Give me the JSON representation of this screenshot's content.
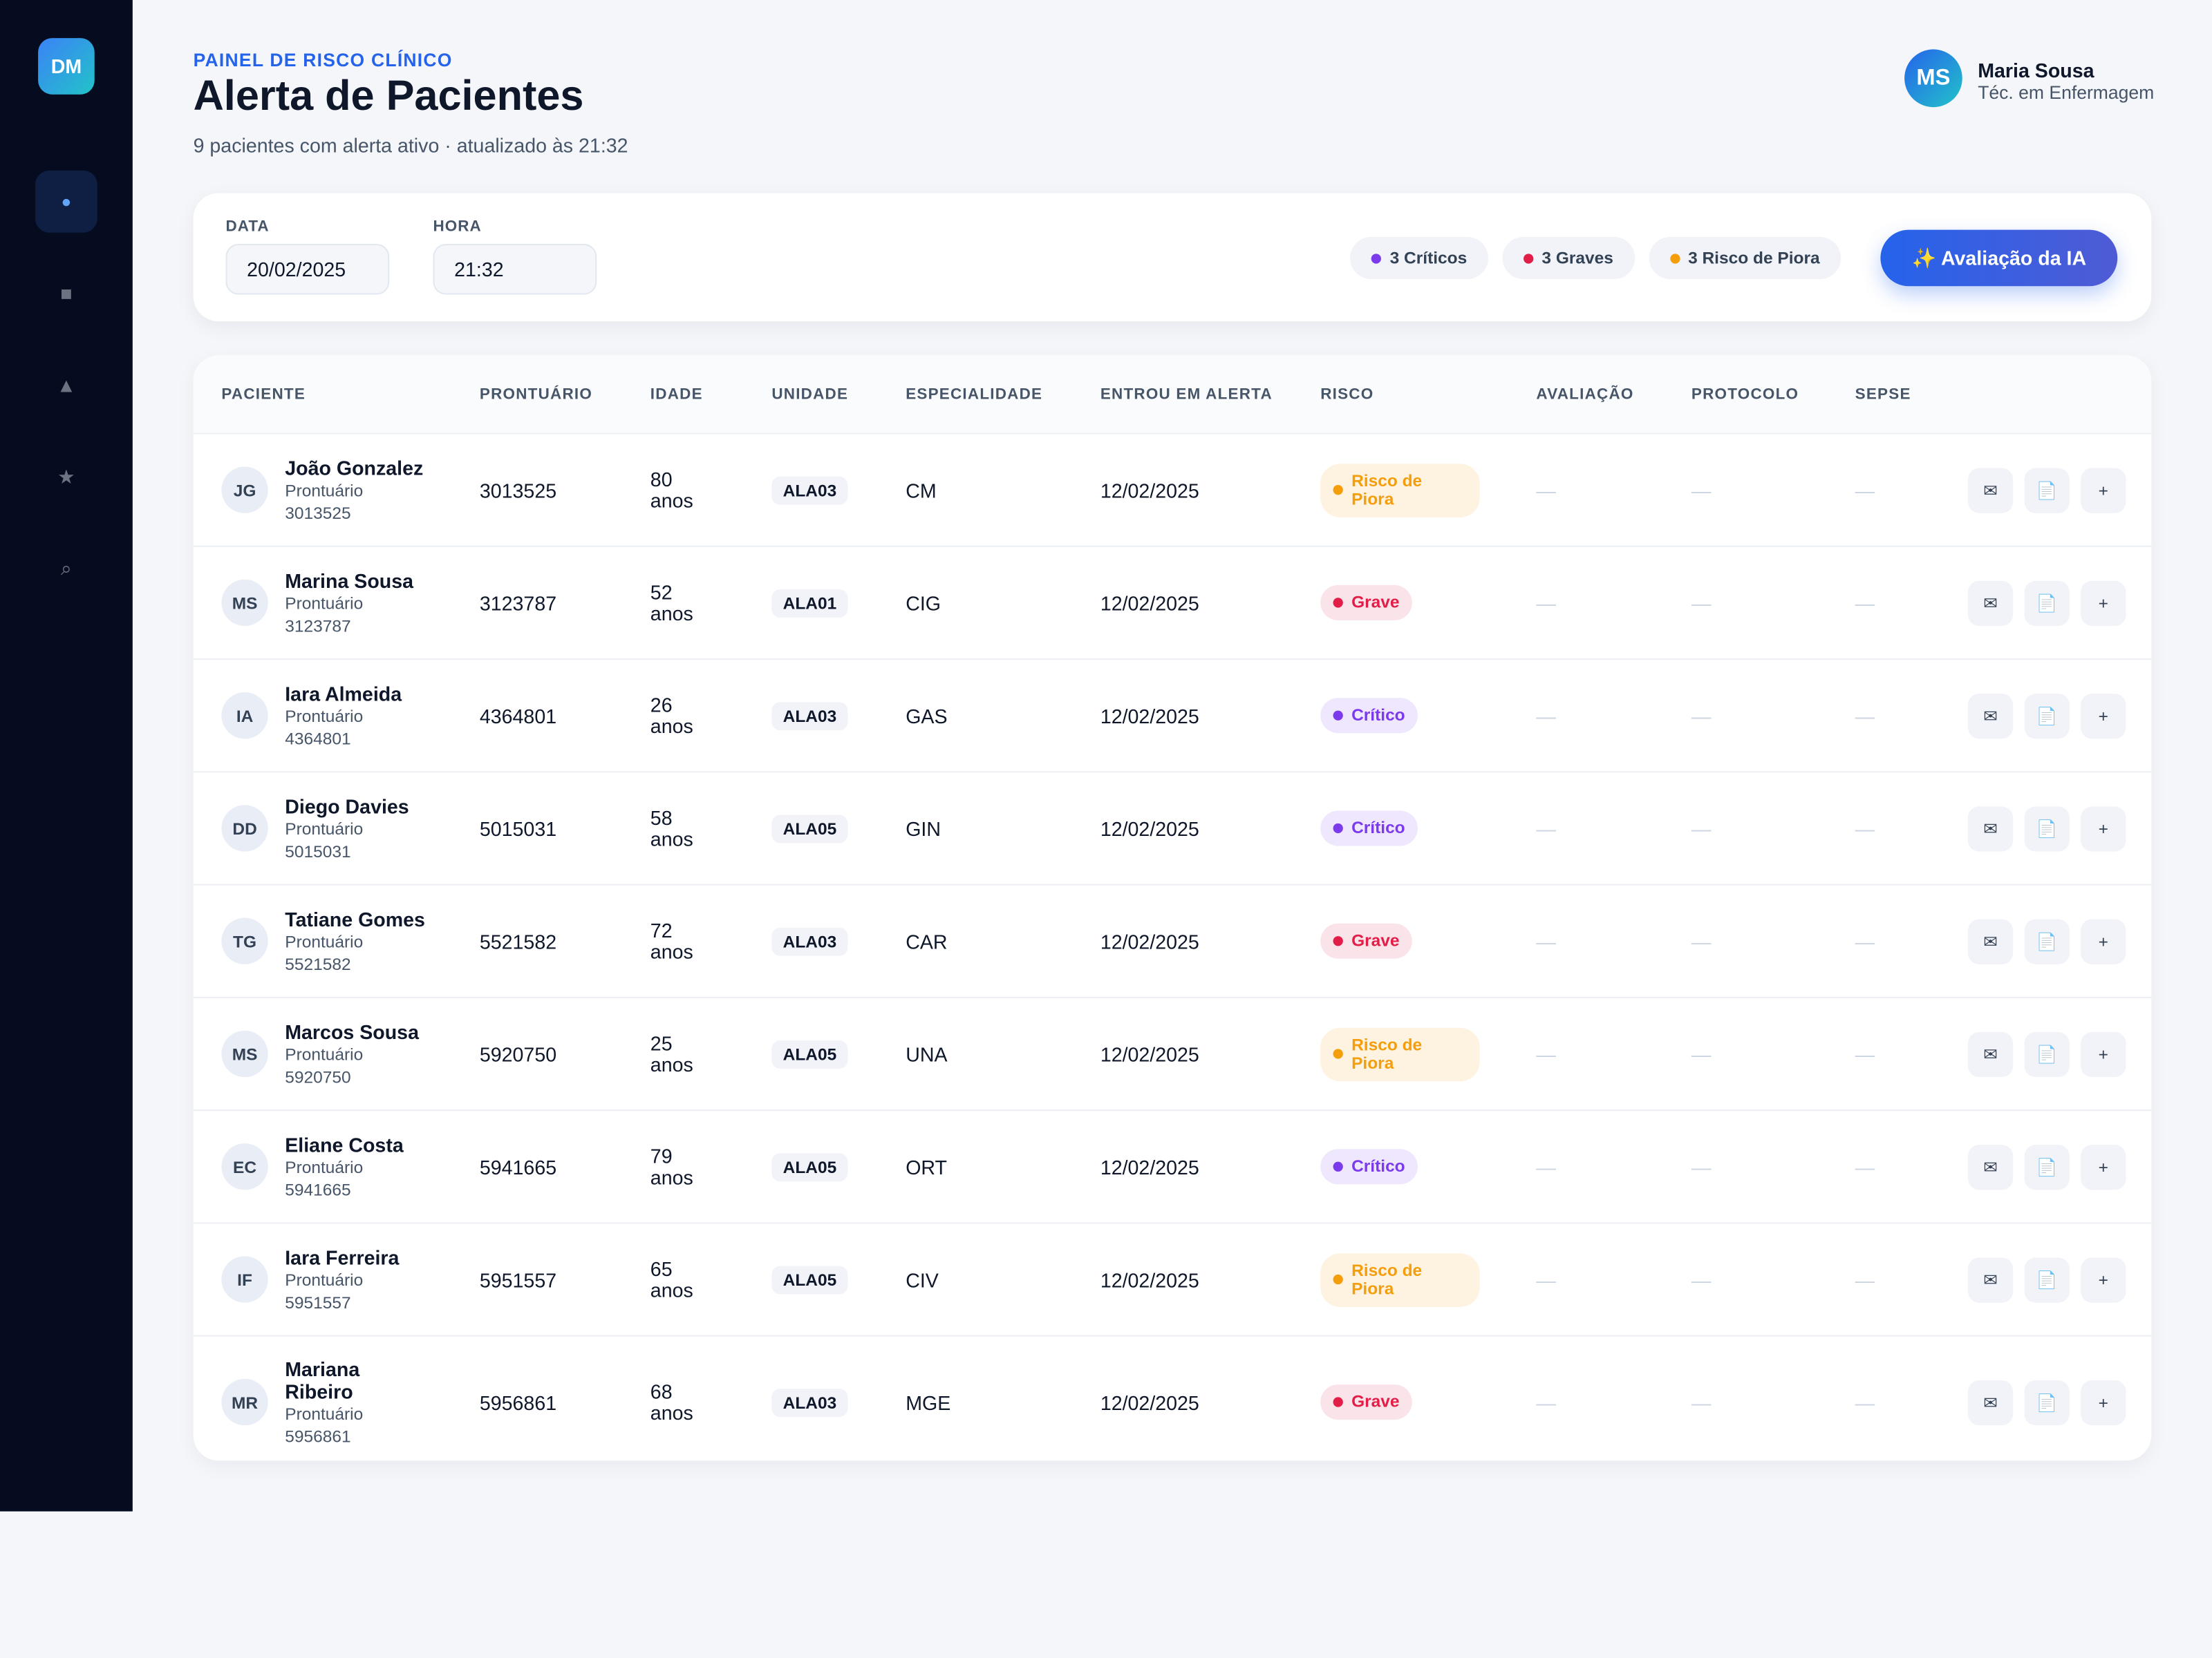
{
  "sidebar": {
    "logo": "DM",
    "nav": [
      "●",
      "■",
      "▲",
      "★",
      "⌕"
    ]
  },
  "header": {
    "eyebrow": "PAINEL DE RISCO CLÍNICO",
    "title": "Alerta de Pacientes",
    "subtitle": "9 pacientes com alerta ativo · atualizado às 21:32"
  },
  "user": {
    "initials": "MS",
    "name": "Maria Sousa",
    "role": "Téc. em Enfermagem"
  },
  "filters": [
    {
      "label": "DATA",
      "value": "20/02/2025"
    },
    {
      "label": "HORA",
      "value": "21:32"
    }
  ],
  "chips": [
    {
      "text": "3 Críticos",
      "color": "#7c3aed"
    },
    {
      "text": "3 Graves",
      "color": "#e11d48"
    },
    {
      "text": "3 Risco de Piora",
      "color": "#f59e0b"
    }
  ],
  "button": "✨ Avaliação da IA",
  "table": {
    "columns": [
      "PACIENTE",
      "PRONTUÁRIO",
      "IDADE",
      "UNIDADE",
      "ESPECIALIDADE",
      "ENTROU EM ALERTA",
      "RISCO",
      "AVALIAÇÃO",
      "PROTOCOLO",
      "SEPSE"
    ],
    "record_label": "Prontuário",
    "actions": [
      "✉",
      "📄",
      "+"
    ],
    "rows": [
      {
        "initials": "JG",
        "name": "João Gonzalez",
        "record": "3013525",
        "age": "80 anos",
        "unit": "ALA03",
        "specialty": "CM",
        "since": "12/02/2025",
        "risk": "Risco de Piora",
        "risk_color": "#f59e0b",
        "evaluation": "—",
        "protocol": "—",
        "sepsis": "—"
      },
      {
        "initials": "MS",
        "name": "Marina Sousa",
        "record": "3123787",
        "age": "52 anos",
        "unit": "ALA01",
        "specialty": "CIG",
        "since": "12/02/2025",
        "risk": "Grave",
        "risk_color": "#e11d48",
        "evaluation": "—",
        "protocol": "—",
        "sepsis": "—"
      },
      {
        "initials": "IA",
        "name": "Iara Almeida",
        "record": "4364801",
        "age": "26 anos",
        "unit": "ALA03",
        "specialty": "GAS",
        "since": "12/02/2025",
        "risk": "Crítico",
        "risk_color": "#7c3aed",
        "evaluation": "—",
        "protocol": "—",
        "sepsis": "—"
      },
      {
        "initials": "DD",
        "name": "Diego Davies",
        "record": "5015031",
        "age": "58 anos",
        "unit": "ALA05",
        "specialty": "GIN",
        "since": "12/02/2025",
        "risk": "Crítico",
        "risk_color": "#7c3aed",
        "evaluation": "—",
        "protocol": "—",
        "sepsis": "—"
      },
      {
        "initials": "TG",
        "name": "Tatiane Gomes",
        "record": "5521582",
        "age": "72 anos",
        "unit": "ALA03",
        "specialty": "CAR",
        "since": "12/02/2025",
        "risk": "Grave",
        "risk_color": "#e11d48",
        "evaluation": "—",
        "protocol": "—",
        "sepsis": "—"
      },
      {
        "initials": "MS",
        "name": "Marcos Sousa",
        "record": "5920750",
        "age": "25 anos",
        "unit": "ALA05",
        "specialty": "UNA",
        "since": "12/02/2025",
        "risk": "Risco de Piora",
        "risk_color": "#f59e0b",
        "evaluation": "—",
        "protocol": "—",
        "sepsis": "—"
      },
      {
        "initials": "EC",
        "name": "Eliane Costa",
        "record": "5941665",
        "age": "79 anos",
        "unit": "ALA05",
        "specialty": "ORT",
        "since": "12/02/2025",
        "risk": "Crítico",
        "risk_color": "#7c3aed",
        "evaluation": "—",
        "protocol": "—",
        "sepsis": "—"
      },
      {
        "initials": "IF",
        "name": "Iara Ferreira",
        "record": "5951557",
        "age": "65 anos",
        "unit": "ALA05",
        "specialty": "CIV",
        "since": "12/02/2025",
        "risk": "Risco de Piora",
        "risk_color": "#f59e0b",
        "evaluation": "—",
        "protocol": "—",
        "sepsis": "—"
      },
      {
        "initials": "MR",
        "name": "Mariana Ribeiro",
        "record": "5956861",
        "age": "68 anos",
        "unit": "ALA03",
        "specialty": "MGE",
        "since": "12/02/2025",
        "risk": "Grave",
        "risk_color": "#e11d48",
        "evaluation": "—",
        "protocol": "—",
        "sepsis": "—"
      }
    ]
  }
}
